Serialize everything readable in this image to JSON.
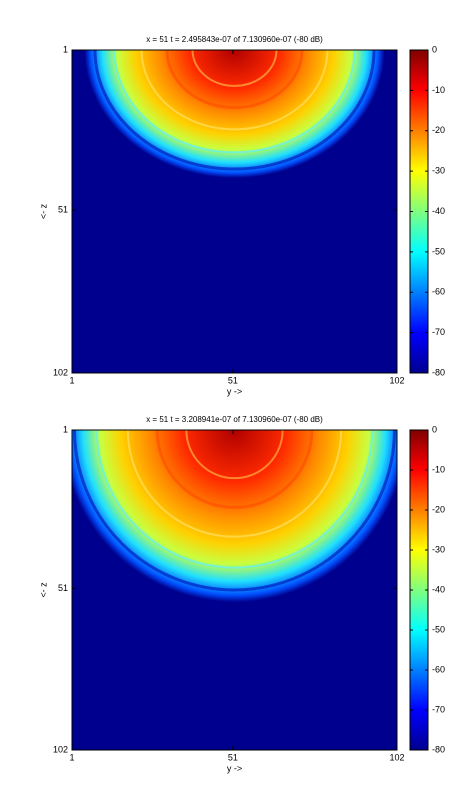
{
  "chart_data": [
    {
      "type": "heatmap",
      "title": "x =  51 t = 2.495843e-07 of 7.130960e-07 (-80 dB)",
      "xlabel": "y ->",
      "ylabel": "<- z",
      "xlim": [
        1,
        102
      ],
      "xticks": [
        1,
        51,
        102
      ],
      "ylim": [
        1,
        102
      ],
      "yticks": [
        1,
        51,
        102
      ],
      "ydir": "reverse",
      "colormap": "jet",
      "clim": [
        -80,
        0
      ],
      "cticks": [
        0,
        -10,
        -20,
        -30,
        -40,
        -50,
        -60,
        -70,
        -80
      ]
    },
    {
      "type": "heatmap",
      "title": "x =  51 t = 3.208941e-07 of 7.130960e-07 (-80 dB)",
      "xlabel": "y ->",
      "ylabel": "<- z",
      "xlim": [
        1,
        102
      ],
      "xticks": [
        1,
        51,
        102
      ],
      "ylim": [
        1,
        102
      ],
      "yticks": [
        1,
        51,
        102
      ],
      "ydir": "reverse",
      "colormap": "jet",
      "clim": [
        -80,
        0
      ],
      "cticks": [
        0,
        -10,
        -20,
        -30,
        -40,
        -50,
        -60,
        -70,
        -80
      ]
    }
  ]
}
